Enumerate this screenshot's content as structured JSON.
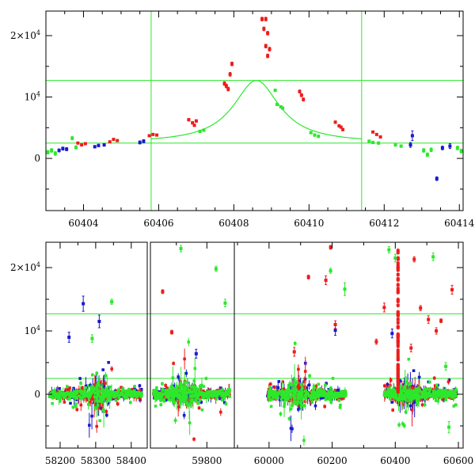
{
  "colors": {
    "red": "#ee1c1c",
    "blue": "#1a1acf",
    "green": "#2ce82c",
    "axis": "#000000",
    "guide": "#2ce82c"
  },
  "chart_data": [
    {
      "type": "scatter",
      "title": "",
      "xlabel": "",
      "ylabel": "",
      "xlim": [
        60403.0,
        60414.1
      ],
      "ylim": [
        -8500,
        24000
      ],
      "xticks": [
        {
          "value": 60404,
          "label": "60404"
        },
        {
          "value": 60406,
          "label": "60406"
        },
        {
          "value": 60408,
          "label": "60408"
        },
        {
          "value": 60410,
          "label": "60410"
        },
        {
          "value": 60412,
          "label": "60412"
        },
        {
          "value": 60414,
          "label": "60414"
        }
      ],
      "yticks": [
        {
          "value": 0,
          "label": "0"
        },
        {
          "value": 10000,
          "label": "10^4"
        },
        {
          "value": 20000,
          "label": "2×10^4"
        }
      ],
      "hlines": [
        2500,
        12700
      ],
      "vlines": [
        60405.8,
        60411.4
      ],
      "model_curve": {
        "t0": 60408.6,
        "baseline": 2500,
        "amplitude": 10200,
        "width": 0.75
      },
      "series": [
        {
          "color": "red",
          "points": [
            [
              60403.85,
              2500,
              150
            ],
            [
              60403.95,
              2200,
              150
            ],
            [
              60404.05,
              2400,
              150
            ],
            [
              60404.7,
              2700,
              150
            ],
            [
              60404.8,
              3100,
              150
            ],
            [
              60404.9,
              2900,
              150
            ],
            [
              60405.75,
              3700,
              150
            ],
            [
              60405.85,
              3900,
              150
            ],
            [
              60405.95,
              3800,
              150
            ],
            [
              60406.8,
              6300,
              200
            ],
            [
              60406.9,
              5800,
              200
            ],
            [
              60407.0,
              6100,
              200
            ],
            [
              60406.95,
              5400,
              200
            ],
            [
              60407.75,
              12200,
              300
            ],
            [
              60407.8,
              11800,
              300
            ],
            [
              60407.9,
              13700,
              300
            ],
            [
              60407.95,
              15400,
              300
            ],
            [
              60407.85,
              11300,
              300
            ],
            [
              60408.75,
              22700,
              300
            ],
            [
              60408.85,
              22700,
              300
            ],
            [
              60408.8,
              21100,
              300
            ],
            [
              60408.9,
              20400,
              300
            ],
            [
              60408.85,
              18300,
              300
            ],
            [
              60408.95,
              17800,
              300
            ],
            [
              60408.9,
              16700,
              300
            ],
            [
              60409.75,
              10900,
              250
            ],
            [
              60409.8,
              10300,
              250
            ],
            [
              60409.85,
              9600,
              250
            ],
            [
              60410.7,
              5900,
              200
            ],
            [
              60410.8,
              5300,
              200
            ],
            [
              60410.9,
              4700,
              200
            ],
            [
              60410.85,
              5100,
              200
            ],
            [
              60411.7,
              4300,
              150
            ],
            [
              60411.8,
              3900,
              150
            ],
            [
              60411.9,
              3500,
              150
            ]
          ]
        },
        {
          "color": "blue",
          "points": [
            [
              60403.35,
              1300,
              250
            ],
            [
              60403.45,
              1600,
              250
            ],
            [
              60403.55,
              1500,
              250
            ],
            [
              60404.3,
              1900,
              200
            ],
            [
              60404.4,
              2100,
              200
            ],
            [
              60404.55,
              2200,
              200
            ],
            [
              60405.5,
              2600,
              250
            ],
            [
              60405.6,
              2800,
              250
            ],
            [
              60412.75,
              3700,
              800
            ],
            [
              60412.7,
              2200,
              400
            ],
            [
              60413.4,
              -3300,
              300
            ],
            [
              60413.55,
              1700,
              300
            ],
            [
              60413.75,
              2000,
              400
            ]
          ]
        },
        {
          "color": "green",
          "points": [
            [
              60403.05,
              1000,
              300
            ],
            [
              60403.15,
              1300,
              300
            ],
            [
              60403.25,
              800,
              300
            ],
            [
              60403.7,
              3300,
              250
            ],
            [
              60403.8,
              1800,
              250
            ],
            [
              60407.2,
              4600,
              200
            ],
            [
              60407.1,
              4400,
              200
            ],
            [
              60409.1,
              11100,
              200
            ],
            [
              60409.15,
              8800,
              200
            ],
            [
              60409.25,
              8400,
              200
            ],
            [
              60409.3,
              8200,
              200
            ],
            [
              60410.05,
              4200,
              200
            ],
            [
              60410.15,
              3800,
              200
            ],
            [
              60410.25,
              3600,
              200
            ],
            [
              60411.6,
              2800,
              200
            ],
            [
              60411.7,
              2600,
              200
            ],
            [
              60411.85,
              2500,
              200
            ],
            [
              60412.3,
              2200,
              200
            ],
            [
              60412.45,
              2000,
              200
            ],
            [
              60413.05,
              1300,
              300
            ],
            [
              60413.15,
              600,
              300
            ],
            [
              60413.25,
              1400,
              300
            ],
            [
              60413.95,
              1700,
              300
            ],
            [
              60414.05,
              1200,
              300
            ]
          ]
        }
      ]
    },
    {
      "type": "scatter",
      "title": "",
      "xlabel": "",
      "ylabel": "",
      "ylim": [
        -8500,
        24000
      ],
      "segments": [
        {
          "xlim": [
            58160,
            58445
          ],
          "xticks": [
            {
              "value": 58200,
              "label": "58200"
            },
            {
              "value": 58300,
              "label": "58300"
            },
            {
              "value": 58400,
              "label": "58400"
            }
          ]
        },
        {
          "xlim": [
            59615,
            59890
          ],
          "xticks": [
            {
              "value": 59800,
              "label": "59800"
            }
          ]
        },
        {
          "xlim": [
            59890,
            60615
          ],
          "xticks": [
            {
              "value": 60000,
              "label": "60000"
            },
            {
              "value": 60200,
              "label": "60200"
            },
            {
              "value": 60400,
              "label": "60400"
            },
            {
              "value": 60600,
              "label": "60600"
            }
          ]
        }
      ],
      "yticks": [
        {
          "value": 0,
          "label": "0"
        },
        {
          "value": 10000,
          "label": "10^4"
        },
        {
          "value": 20000,
          "label": "2×10^4"
        }
      ],
      "hlines": [
        2500,
        12700
      ],
      "seasons": [
        {
          "xmin": 58170,
          "xmax": 58430,
          "peak_x": 58305
        },
        {
          "xmin": 59625,
          "xmax": 59875,
          "peak_x": 59725
        },
        {
          "xmin": 59995,
          "xmax": 60245,
          "peak_x": 60090
        },
        {
          "xmin": 60365,
          "xmax": 60595,
          "peak_x": 60440
        }
      ],
      "flare": {
        "x": 60408.7,
        "ymax": 22700
      },
      "outliers": [
        {
          "color": "blue",
          "points": [
            [
              58265,
              14300,
              1200
            ],
            [
              58225,
              9000,
              800
            ],
            [
              58310,
              11500,
              1000
            ],
            [
              60210,
              10100,
              800
            ],
            [
              60390,
              9600,
              700
            ],
            [
              59765,
              6400,
              700
            ]
          ]
        },
        {
          "color": "green",
          "points": [
            [
              58345,
              14600,
              400
            ],
            [
              58290,
              8800,
              600
            ],
            [
              59715,
              23000,
              500
            ],
            [
              59830,
              19800,
              400
            ],
            [
              59860,
              14400,
              600
            ],
            [
              60560,
              4400,
              600
            ],
            [
              60520,
              21700,
              600
            ],
            [
              60240,
              16600,
              1000
            ],
            [
              60195,
              19500,
              400
            ],
            [
              60380,
              22800,
              500
            ],
            [
              60400,
              21500,
              600
            ],
            [
              60570,
              -5200,
              900
            ]
          ]
        },
        {
          "color": "red",
          "points": [
            [
              59655,
              16200,
              300
            ],
            [
              59685,
              9800,
              300
            ],
            [
              60125,
              18500,
              300
            ],
            [
              60180,
              18000,
              700
            ],
            [
              60195,
              23200,
              300
            ],
            [
              60210,
              11000,
              600
            ],
            [
              60365,
              13700,
              700
            ],
            [
              60460,
              21300,
              400
            ],
            [
              60480,
              13600,
              400
            ],
            [
              60505,
              11800,
              600
            ],
            [
              60530,
              10000,
              500
            ],
            [
              60545,
              11600,
              300
            ],
            [
              60580,
              16500,
              700
            ],
            [
              60340,
              8300,
              400
            ],
            [
              60450,
              7300,
              600
            ],
            [
              60080,
              6700,
              700
            ]
          ]
        }
      ]
    }
  ]
}
